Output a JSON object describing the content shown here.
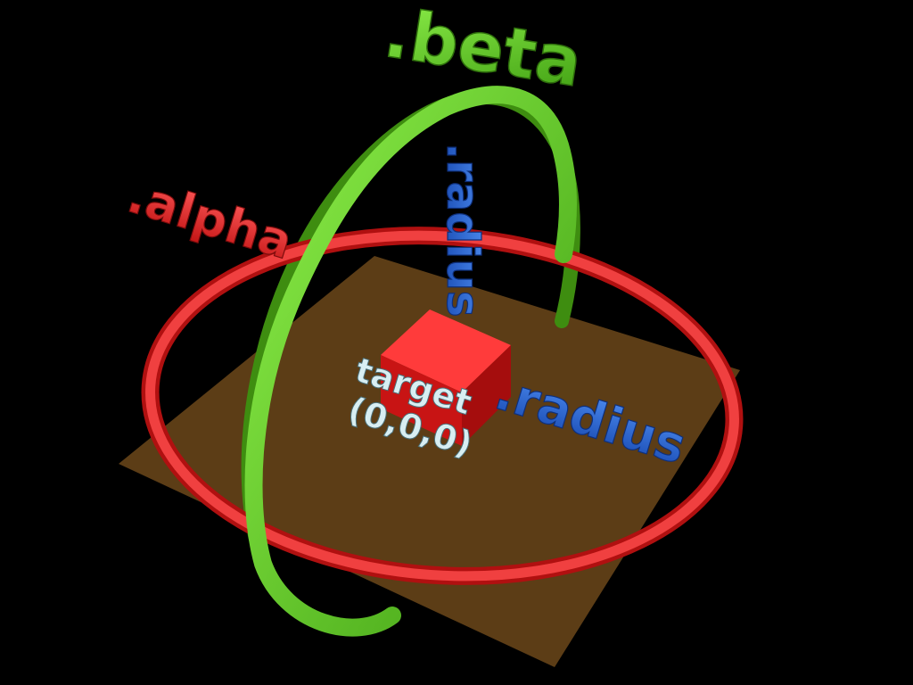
{
  "labels": {
    "beta": ".beta",
    "alpha": ".alpha",
    "radius_vertical": ".radius",
    "radius_horizontal": ".radius",
    "target_line1": "target",
    "target_line2": "(0,0,0)"
  },
  "colors": {
    "background": "#000000",
    "ground": "#5c3d16",
    "alpha_ring": "#e02626",
    "beta_ring": "#5cc41c",
    "cube": "#dd1b1b",
    "radius_text": "#1f5fd0",
    "target_text": "#d8eef2"
  }
}
